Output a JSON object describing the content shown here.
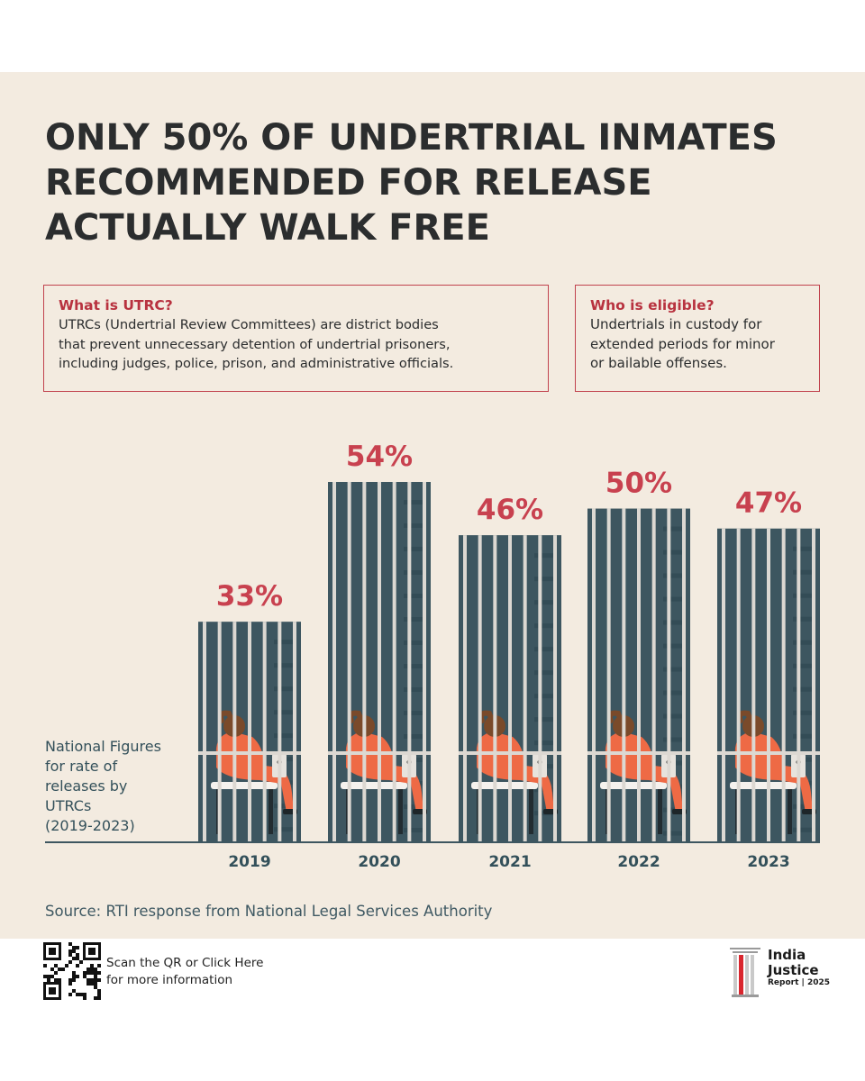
{
  "title": {
    "lines": [
      "ONLY 50% OF UNDERTRIAL INMATES",
      "RECOMMENDED FOR RELEASE",
      "ACTUALLY WALK FREE"
    ]
  },
  "info_utrc": {
    "heading": "What is UTRC?",
    "lines": [
      "UTRCs (Undertrial Review Committees) are district bodies",
      "that prevent unnecessary detention of undertrial prisoners,",
      "including judges, police, prison, and administrative officials."
    ]
  },
  "info_eligible": {
    "heading": "Who is eligible?",
    "lines": [
      "Undertrials in custody for",
      "extended periods for minor",
      "or bailable offenses."
    ]
  },
  "side_label": {
    "lines": [
      "National Figures",
      "for rate of",
      "releases by",
      "UTRCs",
      "(2019-2023)"
    ]
  },
  "chart_data": {
    "type": "bar",
    "categories": [
      "2019",
      "2020",
      "2021",
      "2022",
      "2023"
    ],
    "values": [
      33,
      54,
      46,
      50,
      47
    ],
    "data_labels": [
      "33%",
      "54%",
      "46%",
      "50%",
      "47%"
    ],
    "ylim": [
      0,
      54
    ],
    "grid": false,
    "legend": "none",
    "colors": {
      "bar": "#3d5660",
      "bar_dark": "#334c56",
      "cell_bar": "#dcd8d2",
      "label": "#c8414f",
      "axis": "#3d5660",
      "inmate": "#ee6a45",
      "skin": "#7a4a2a"
    }
  },
  "source": "Source: RTI response from National Legal Services Authority",
  "qr": {
    "lines": [
      "Scan the QR or Click Here",
      "for more information"
    ]
  },
  "logo": {
    "lines": [
      "India",
      "Justice"
    ],
    "sub": "Report | 2025"
  },
  "colors": {
    "background": "#f3ebe0",
    "title": "#2b2d2e",
    "accent": "#c1434e"
  }
}
